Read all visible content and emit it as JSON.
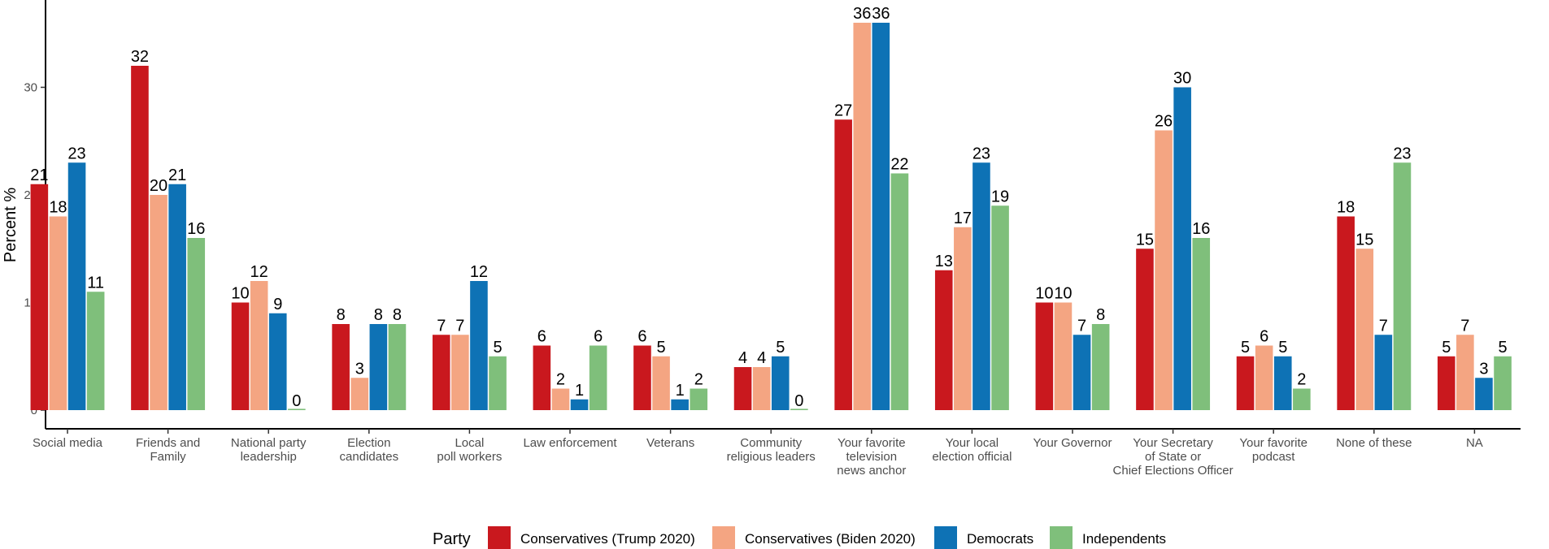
{
  "chart_data": {
    "type": "bar",
    "ylabel": "Percent %",
    "ylim": [
      0,
      37
    ],
    "yticks": [
      0,
      10,
      20,
      30
    ],
    "grid": false,
    "legend_position": "bottom",
    "legend_title": "Party",
    "categories": [
      [
        "Social media"
      ],
      [
        "Friends and",
        "Family"
      ],
      [
        "National party",
        "leadership"
      ],
      [
        "Election",
        "candidates"
      ],
      [
        "Local",
        "poll workers"
      ],
      [
        "Law enforcement"
      ],
      [
        "Veterans"
      ],
      [
        "Community",
        "religious leaders"
      ],
      [
        "Your favorite",
        "television",
        "news anchor"
      ],
      [
        "Your local",
        "election official"
      ],
      [
        "Your Governor"
      ],
      [
        "Your Secretary",
        "of State or",
        "Chief Elections Officer"
      ],
      [
        "Your favorite",
        "podcast"
      ],
      [
        "None of these"
      ],
      [
        "NA"
      ]
    ],
    "series": [
      {
        "name": "Conservatives (Trump 2020)",
        "color": "#c9181e",
        "values": [
          21,
          32,
          10,
          8,
          7,
          6,
          6,
          4,
          27,
          13,
          10,
          15,
          5,
          18,
          5
        ]
      },
      {
        "name": "Conservatives (Biden 2020)",
        "color": "#f4a582",
        "values": [
          18,
          20,
          12,
          3,
          7,
          2,
          5,
          4,
          36,
          17,
          10,
          26,
          6,
          15,
          7
        ]
      },
      {
        "name": "Democrats",
        "color": "#0e72b5",
        "values": [
          23,
          21,
          9,
          8,
          12,
          1,
          1,
          5,
          36,
          23,
          7,
          30,
          5,
          7,
          3
        ]
      },
      {
        "name": "Independents",
        "color": "#7fbf7b",
        "values": [
          11,
          16,
          0,
          8,
          5,
          6,
          2,
          0,
          22,
          19,
          8,
          16,
          2,
          23,
          5
        ]
      }
    ]
  }
}
